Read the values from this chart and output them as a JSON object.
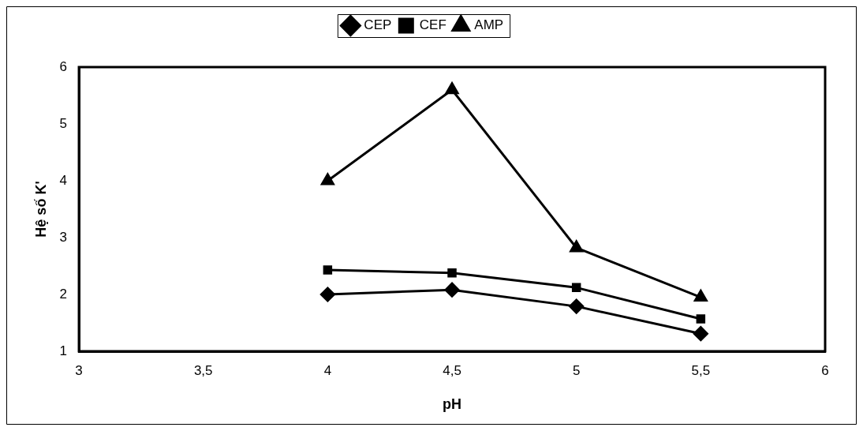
{
  "chart_data": {
    "type": "line",
    "xlabel": "pH",
    "ylabel": "Hệ số K'",
    "x": [
      4,
      4.5,
      5,
      5.5
    ],
    "series": [
      {
        "name": "CEP",
        "color": "#000000",
        "marker": "diamond",
        "values": [
          2.0,
          2.08,
          1.79,
          1.31
        ]
      },
      {
        "name": "CEF",
        "color": "#000000",
        "marker": "square",
        "values": [
          2.43,
          2.38,
          2.12,
          1.57
        ]
      },
      {
        "name": "AMP",
        "color": "#000000",
        "marker": "triangle",
        "values": [
          4.0,
          5.6,
          2.82,
          1.95
        ]
      }
    ],
    "xlim": [
      3,
      6
    ],
    "xticks": [
      3,
      {
        "value": 3.5,
        "label": "3,5"
      },
      4,
      {
        "value": 4.5,
        "label": "4,5"
      },
      5,
      {
        "value": 5.5,
        "label": "5,5"
      },
      6
    ],
    "ylim": [
      1,
      6
    ],
    "yticks": [
      1,
      2,
      3,
      4,
      5,
      6
    ],
    "grid": false,
    "legend": "top",
    "line_style": "solid"
  }
}
